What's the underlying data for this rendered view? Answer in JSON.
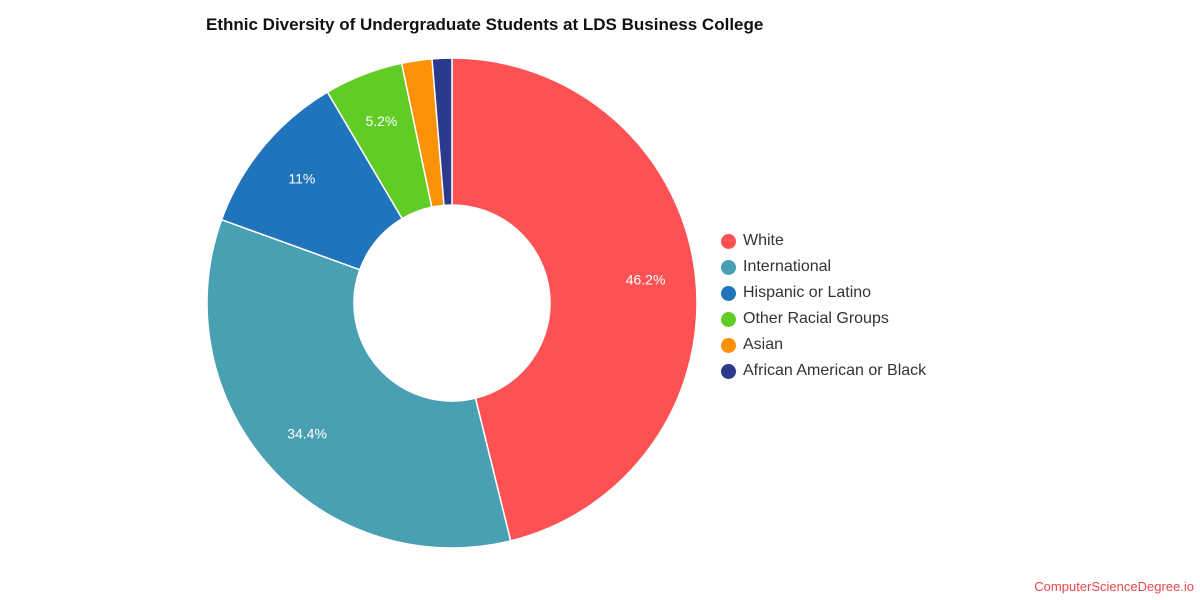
{
  "chart_data": {
    "type": "pie",
    "variant": "donut",
    "title": "Ethnic Diversity of Undergraduate Students at LDS Business College",
    "legend_position": "right",
    "slices": [
      {
        "label": "White",
        "value": 46.2,
        "display": "46.2%",
        "color": "#fe5153"
      },
      {
        "label": "International",
        "value": 34.4,
        "display": "34.4%",
        "color": "#4aa0b3"
      },
      {
        "label": "Hispanic or Latino",
        "value": 11,
        "display": "11%",
        "color": "#1f74bb"
      },
      {
        "label": "Other Racial Groups",
        "value": 5.2,
        "display": "5.2%",
        "color": "#60cc25"
      },
      {
        "label": "Asian",
        "value": 2.0,
        "display": "",
        "color": "#fa9106"
      },
      {
        "label": "African American or Black",
        "value": 1.3,
        "display": "",
        "color": "#2b3a8c"
      }
    ]
  },
  "footer": {
    "source": "ComputerScienceDegree.io"
  }
}
